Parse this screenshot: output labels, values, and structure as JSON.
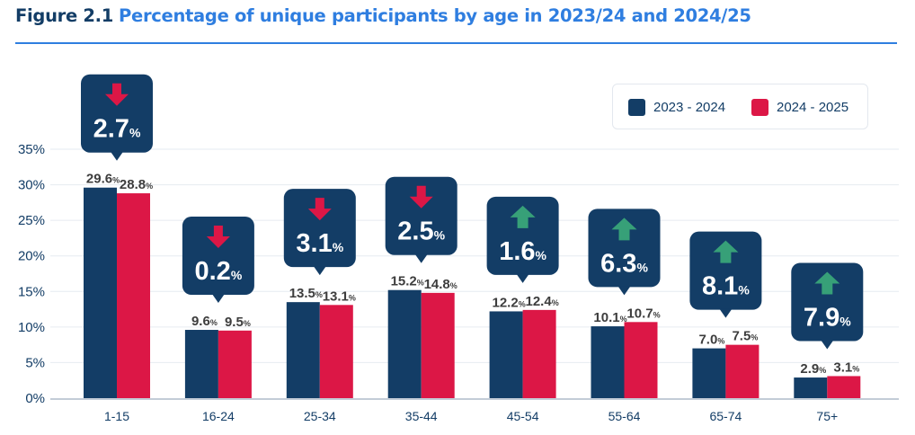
{
  "title": {
    "figure_label": "Figure 2.1",
    "text": "Percentage of unique participants by age in 2023/24 and 2024/25"
  },
  "colors": {
    "series_2023": "#133d66",
    "series_2024": "#dc1746",
    "callout_bg": "#133d66",
    "arrow_down": "#dc1746",
    "arrow_up": "#37a078",
    "title_blue": "#2f7ee0",
    "axis_text": "#133d66",
    "value_text": "#3d3d3d",
    "grid": "#e6ebf1",
    "baseline": "#c3ccd7"
  },
  "legend": {
    "items": [
      {
        "label": "2023 - 2024"
      },
      {
        "label": "2024 - 2025"
      }
    ]
  },
  "chart_data": {
    "type": "bar",
    "title": "Percentage of unique participants by age in 2023/24 and 2024/25",
    "xlabel": "",
    "ylabel": "",
    "ylim": [
      0,
      35
    ],
    "yticks": [
      0,
      5,
      10,
      15,
      20,
      25,
      30,
      35
    ],
    "ytick_labels": [
      "0%",
      "5%",
      "10%",
      "15%",
      "20%",
      "25%",
      "30%",
      "35%"
    ],
    "grid": true,
    "legend_position": "top-right",
    "categories": [
      "1-15",
      "16-24",
      "25-34",
      "35-44",
      "45-54",
      "55-64",
      "65-74",
      "75+"
    ],
    "series": [
      {
        "name": "2023 - 2024",
        "values": [
          29.6,
          9.6,
          13.5,
          15.2,
          12.2,
          10.1,
          7.0,
          2.9
        ]
      },
      {
        "name": "2024 - 2025",
        "values": [
          28.8,
          9.5,
          13.1,
          14.8,
          12.4,
          10.7,
          7.5,
          3.1
        ]
      }
    ],
    "value_labels": [
      [
        "29.6",
        "28.8"
      ],
      [
        "9.6",
        "9.5"
      ],
      [
        "13.5",
        "13.1"
      ],
      [
        "15.2",
        "14.8"
      ],
      [
        "12.2",
        "12.4"
      ],
      [
        "10.1",
        "10.7"
      ],
      [
        "7.0",
        "7.5"
      ],
      [
        "2.9",
        "3.1"
      ]
    ],
    "value_suffix": "%",
    "annotations": [
      {
        "category": "1-15",
        "change": "2.7",
        "direction": "down"
      },
      {
        "category": "16-24",
        "change": "0.2",
        "direction": "down"
      },
      {
        "category": "25-34",
        "change": "3.1",
        "direction": "down"
      },
      {
        "category": "35-44",
        "change": "2.5",
        "direction": "down"
      },
      {
        "category": "45-54",
        "change": "1.6",
        "direction": "up"
      },
      {
        "category": "55-64",
        "change": "6.3",
        "direction": "up"
      },
      {
        "category": "65-74",
        "change": "8.1",
        "direction": "up"
      },
      {
        "category": "75+",
        "change": "7.9",
        "direction": "up"
      }
    ],
    "annotation_suffix": "%"
  }
}
